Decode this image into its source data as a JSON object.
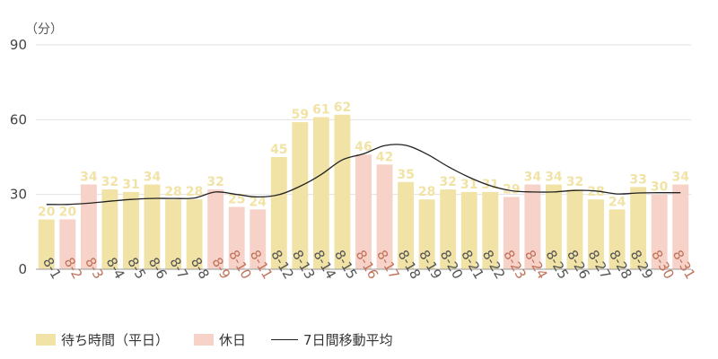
{
  "chart_data": {
    "type": "bar",
    "unit_label": "（分）",
    "ylim": [
      0,
      90
    ],
    "yticks": [
      "0",
      "30",
      "60",
      "90"
    ],
    "grid": true,
    "legend_position": "bottom-left",
    "categories": [
      "8-1",
      "8-2",
      "8-3",
      "8-4",
      "8-5",
      "8-6",
      "8-7",
      "8-8",
      "8-9",
      "8-10",
      "8-11",
      "8-12",
      "8-13",
      "8-14",
      "8-15",
      "8-16",
      "8-17",
      "8-18",
      "8-19",
      "8-20",
      "8-21",
      "8-22",
      "8-23",
      "8-24",
      "8-25",
      "8-26",
      "8-27",
      "8-28",
      "8-29",
      "8-30",
      "8-31"
    ],
    "values": [
      20,
      20,
      34,
      32,
      31,
      34,
      28,
      28,
      32,
      25,
      24,
      45,
      59,
      61,
      62,
      46,
      42,
      35,
      28,
      32,
      31,
      31,
      29,
      34,
      34,
      32,
      28,
      24,
      33,
      30,
      34
    ],
    "holiday": [
      false,
      true,
      true,
      false,
      false,
      false,
      false,
      false,
      true,
      true,
      true,
      false,
      false,
      false,
      false,
      true,
      true,
      false,
      false,
      false,
      false,
      false,
      true,
      true,
      false,
      false,
      false,
      false,
      false,
      true,
      true
    ],
    "moving_average": [
      26,
      26,
      26.5,
      27.3,
      28,
      28.4,
      28.4,
      28.6,
      31,
      30,
      29,
      29.9,
      33.3,
      38,
      43.9,
      46.3,
      49.6,
      49.7,
      46.2,
      41.2,
      36.9,
      33.5,
      31.5,
      31,
      31,
      31.6,
      31.4,
      30.2,
      30.6,
      30.7,
      30.7
    ],
    "series": [
      {
        "name": "待ち時間（平日）",
        "color": "#f1e3a6"
      },
      {
        "name": "休日",
        "color": "#f6d2c8"
      },
      {
        "name": "7日間移動平均",
        "color": "#222222"
      }
    ],
    "colors": {
      "weekday_bar": "#f1e3a6",
      "holiday_bar": "#f6d2c8",
      "weekday_label": "#555555",
      "holiday_label": "#c0735a",
      "data_label": "#f1e3a6",
      "axis": "#999999",
      "grid": "#e2e2e2"
    }
  }
}
